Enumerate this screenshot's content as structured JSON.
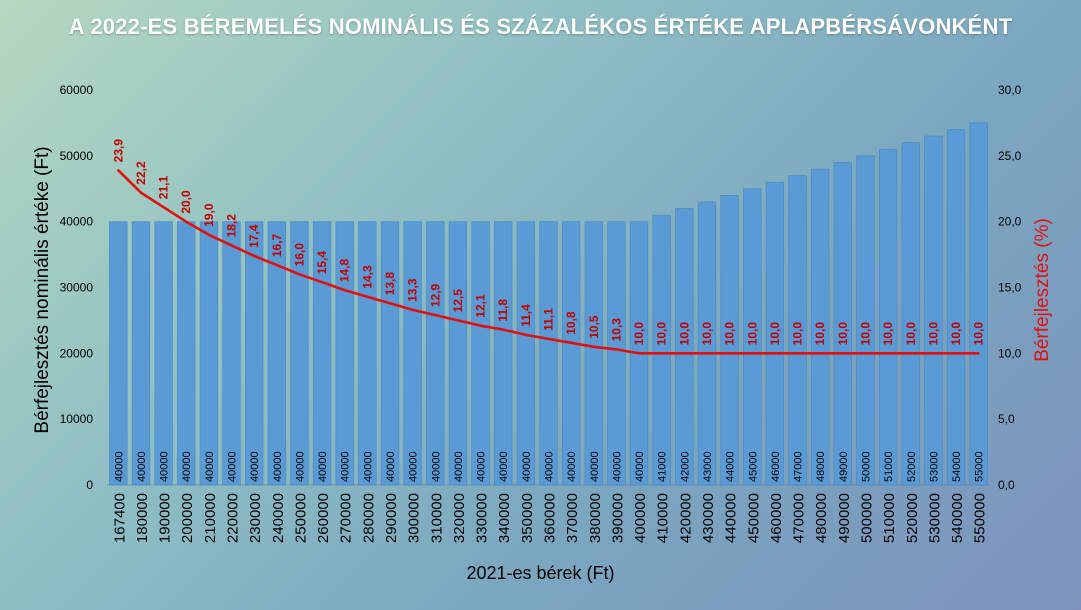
{
  "title": "A 2022-ES BÉREMELÉS NOMINÁLIS ÉS SZÁZALÉKOS ÉRTÉKE APLAPBÉRSÁVONKÉNT",
  "chart_data": {
    "type": "bar",
    "title": "A 2022-ES BÉREMELÉS NOMINÁLIS ÉS SZÁZALÉKOS ÉRTÉKE APLAPBÉRSÁVONKÉNT",
    "xlabel": "2021-es bérek (Ft)",
    "ylabel": "Bérfejlesztés nominális értéke (Ft)",
    "y2label": "Bérfejlesztés (%)",
    "ylim": [
      0,
      60000
    ],
    "y2lim": [
      0,
      30
    ],
    "yticks": [
      "0",
      "10000",
      "20000",
      "30000",
      "40000",
      "50000",
      "60000"
    ],
    "y2ticks": [
      "0,0",
      "5,0",
      "10,0",
      "15,0",
      "20,0",
      "25,0",
      "30,0"
    ],
    "categories": [
      "167400",
      "180000",
      "190000",
      "200000",
      "210000",
      "220000",
      "230000",
      "240000",
      "250000",
      "260000",
      "270000",
      "280000",
      "290000",
      "300000",
      "310000",
      "320000",
      "330000",
      "340000",
      "350000",
      "360000",
      "370000",
      "380000",
      "390000",
      "400000",
      "410000",
      "420000",
      "430000",
      "440000",
      "450000",
      "460000",
      "470000",
      "480000",
      "490000",
      "500000",
      "510000",
      "520000",
      "530000",
      "540000",
      "550000"
    ],
    "series": [
      {
        "type": "bar",
        "axis": "left",
        "values": [
          40000,
          40000,
          40000,
          40000,
          40000,
          40000,
          40000,
          40000,
          40000,
          40000,
          40000,
          40000,
          40000,
          40000,
          40000,
          40000,
          40000,
          40000,
          40000,
          40000,
          40000,
          40000,
          40000,
          40000,
          41000,
          42000,
          43000,
          44000,
          45000,
          46000,
          47000,
          48000,
          49000,
          50000,
          51000,
          52000,
          53000,
          54000,
          55000
        ],
        "labels": [
          "40000",
          "40000",
          "40000",
          "40000",
          "40000",
          "40000",
          "40000",
          "40000",
          "40000",
          "40000",
          "40000",
          "40000",
          "40000",
          "40000",
          "40000",
          "40000",
          "40000",
          "40000",
          "40000",
          "40000",
          "40000",
          "40000",
          "40000",
          "40000",
          "41000",
          "42000",
          "43000",
          "44000",
          "45000",
          "46000",
          "47000",
          "48000",
          "49000",
          "50000",
          "51000",
          "52000",
          "53000",
          "54000",
          "55000"
        ]
      },
      {
        "type": "line",
        "axis": "right",
        "values": [
          23.9,
          22.2,
          21.1,
          20.0,
          19.0,
          18.2,
          17.4,
          16.7,
          16.0,
          15.4,
          14.8,
          14.3,
          13.8,
          13.3,
          12.9,
          12.5,
          12.1,
          11.8,
          11.4,
          11.1,
          10.8,
          10.5,
          10.3,
          10.0,
          10.0,
          10.0,
          10.0,
          10.0,
          10.0,
          10.0,
          10.0,
          10.0,
          10.0,
          10.0,
          10.0,
          10.0,
          10.0,
          10.0,
          10.0
        ],
        "labels": [
          "23,9",
          "22,2",
          "21,1",
          "20,0",
          "19,0",
          "18,2",
          "17,4",
          "16,7",
          "16,0",
          "15,4",
          "14,8",
          "14,3",
          "13,8",
          "13,3",
          "12,9",
          "12,5",
          "12,1",
          "11,8",
          "11,4",
          "11,1",
          "10,8",
          "10,5",
          "10,3",
          "10,0",
          "10,0",
          "10,0",
          "10,0",
          "10,0",
          "10,0",
          "10,0",
          "10,0",
          "10,0",
          "10,0",
          "10,0",
          "10,0",
          "10,0",
          "10,0",
          "10,0",
          "10,0"
        ]
      }
    ],
    "colors": {
      "bar": "#5b9bd5",
      "bar_edge": "#4a86c0",
      "line": "#e01010",
      "line_label": "#c00000"
    },
    "grid": false,
    "legend": "none"
  }
}
